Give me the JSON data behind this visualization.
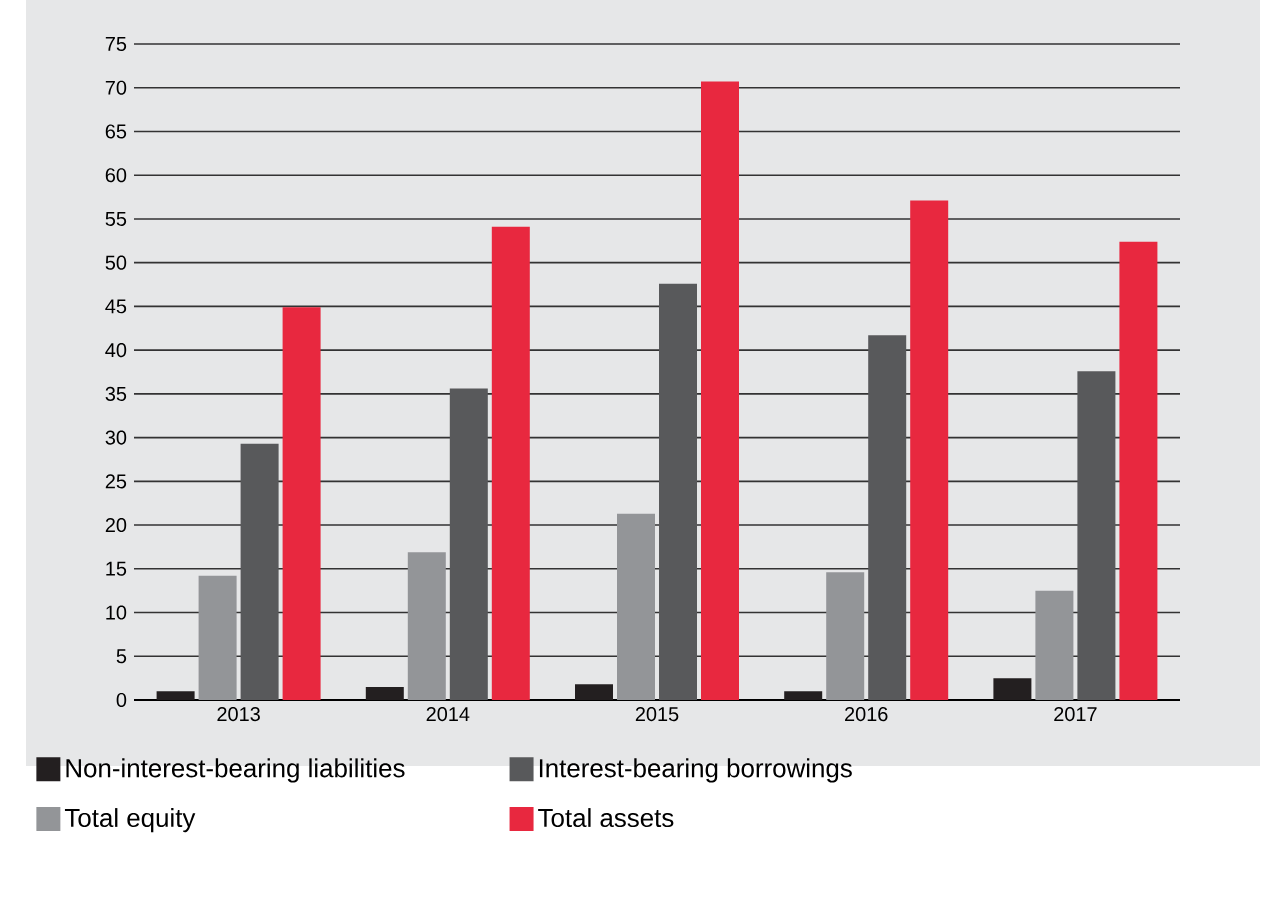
{
  "chart_data": {
    "type": "bar",
    "categories": [
      "2013",
      "2014",
      "2015",
      "2016",
      "2017"
    ],
    "series": [
      {
        "name": "Non-interest-bearing liabilities",
        "color": "#231f20",
        "values": [
          1.0,
          1.5,
          1.8,
          1.0,
          2.5
        ]
      },
      {
        "name": "Total equity",
        "color": "#939598",
        "values": [
          14.2,
          16.9,
          21.3,
          14.6,
          12.5
        ]
      },
      {
        "name": "Interest-bearing borrowings",
        "color": "#58595b",
        "values": [
          29.3,
          35.6,
          47.6,
          41.7,
          37.6
        ]
      },
      {
        "name": "Total assets",
        "color": "#e8283f",
        "values": [
          44.9,
          54.1,
          70.7,
          57.1,
          52.4
        ]
      }
    ],
    "ylim": [
      0,
      75
    ],
    "yticks": [
      0,
      5,
      10,
      15,
      20,
      25,
      30,
      35,
      40,
      45,
      50,
      55,
      60,
      65,
      70,
      75
    ],
    "grid": "y",
    "legend": "bottom"
  }
}
